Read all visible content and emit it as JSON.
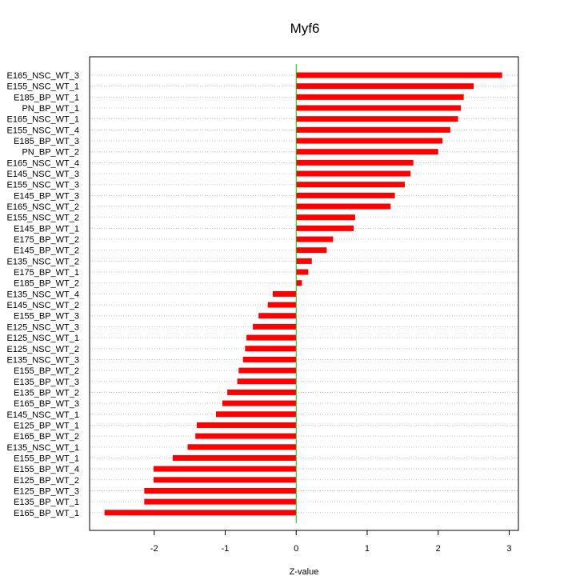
{
  "chart_data": {
    "type": "bar",
    "orientation": "horizontal",
    "title": "Myf6",
    "xlabel": "Z-value",
    "ylabel": "",
    "xlim": [
      -2.91,
      3.13
    ],
    "xticks": [
      -2,
      -1,
      0,
      1,
      2,
      3
    ],
    "grid": "horizontal dotted",
    "legend": "none",
    "bar_color": "#ff0000",
    "zero_line_color": "#00cc00",
    "categories": [
      "E165_NSC_WT_3",
      "E155_NSC_WT_1",
      "E185_BP_WT_1",
      "PN_BP_WT_1",
      "E165_NSC_WT_1",
      "E155_NSC_WT_4",
      "E185_BP_WT_3",
      "PN_BP_WT_2",
      "E165_NSC_WT_4",
      "E145_NSC_WT_3",
      "E155_NSC_WT_3",
      "E145_BP_WT_3",
      "E165_NSC_WT_2",
      "E155_NSC_WT_2",
      "E145_BP_WT_1",
      "E175_BP_WT_2",
      "E145_BP_WT_2",
      "E135_NSC_WT_2",
      "E175_BP_WT_1",
      "E185_BP_WT_2",
      "E135_NSC_WT_4",
      "E145_NSC_WT_2",
      "E155_BP_WT_3",
      "E125_NSC_WT_3",
      "E125_NSC_WT_1",
      "E125_NSC_WT_2",
      "E135_NSC_WT_3",
      "E155_BP_WT_2",
      "E135_BP_WT_3",
      "E135_BP_WT_2",
      "E165_BP_WT_3",
      "E145_NSC_WT_1",
      "E125_BP_WT_1",
      "E165_BP_WT_2",
      "E135_NSC_WT_1",
      "E155_BP_WT_1",
      "E155_BP_WT_4",
      "E125_BP_WT_2",
      "E125_BP_WT_3",
      "E135_BP_WT_1",
      "E165_BP_WT_1"
    ],
    "values": [
      2.9,
      2.5,
      2.36,
      2.32,
      2.28,
      2.17,
      2.06,
      2.0,
      1.65,
      1.61,
      1.53,
      1.39,
      1.33,
      0.83,
      0.81,
      0.52,
      0.43,
      0.22,
      0.17,
      0.08,
      -0.33,
      -0.4,
      -0.53,
      -0.61,
      -0.7,
      -0.72,
      -0.75,
      -0.81,
      -0.83,
      -0.97,
      -1.04,
      -1.13,
      -1.4,
      -1.42,
      -1.53,
      -1.74,
      -2.01,
      -2.01,
      -2.14,
      -2.14,
      -2.7
    ]
  }
}
